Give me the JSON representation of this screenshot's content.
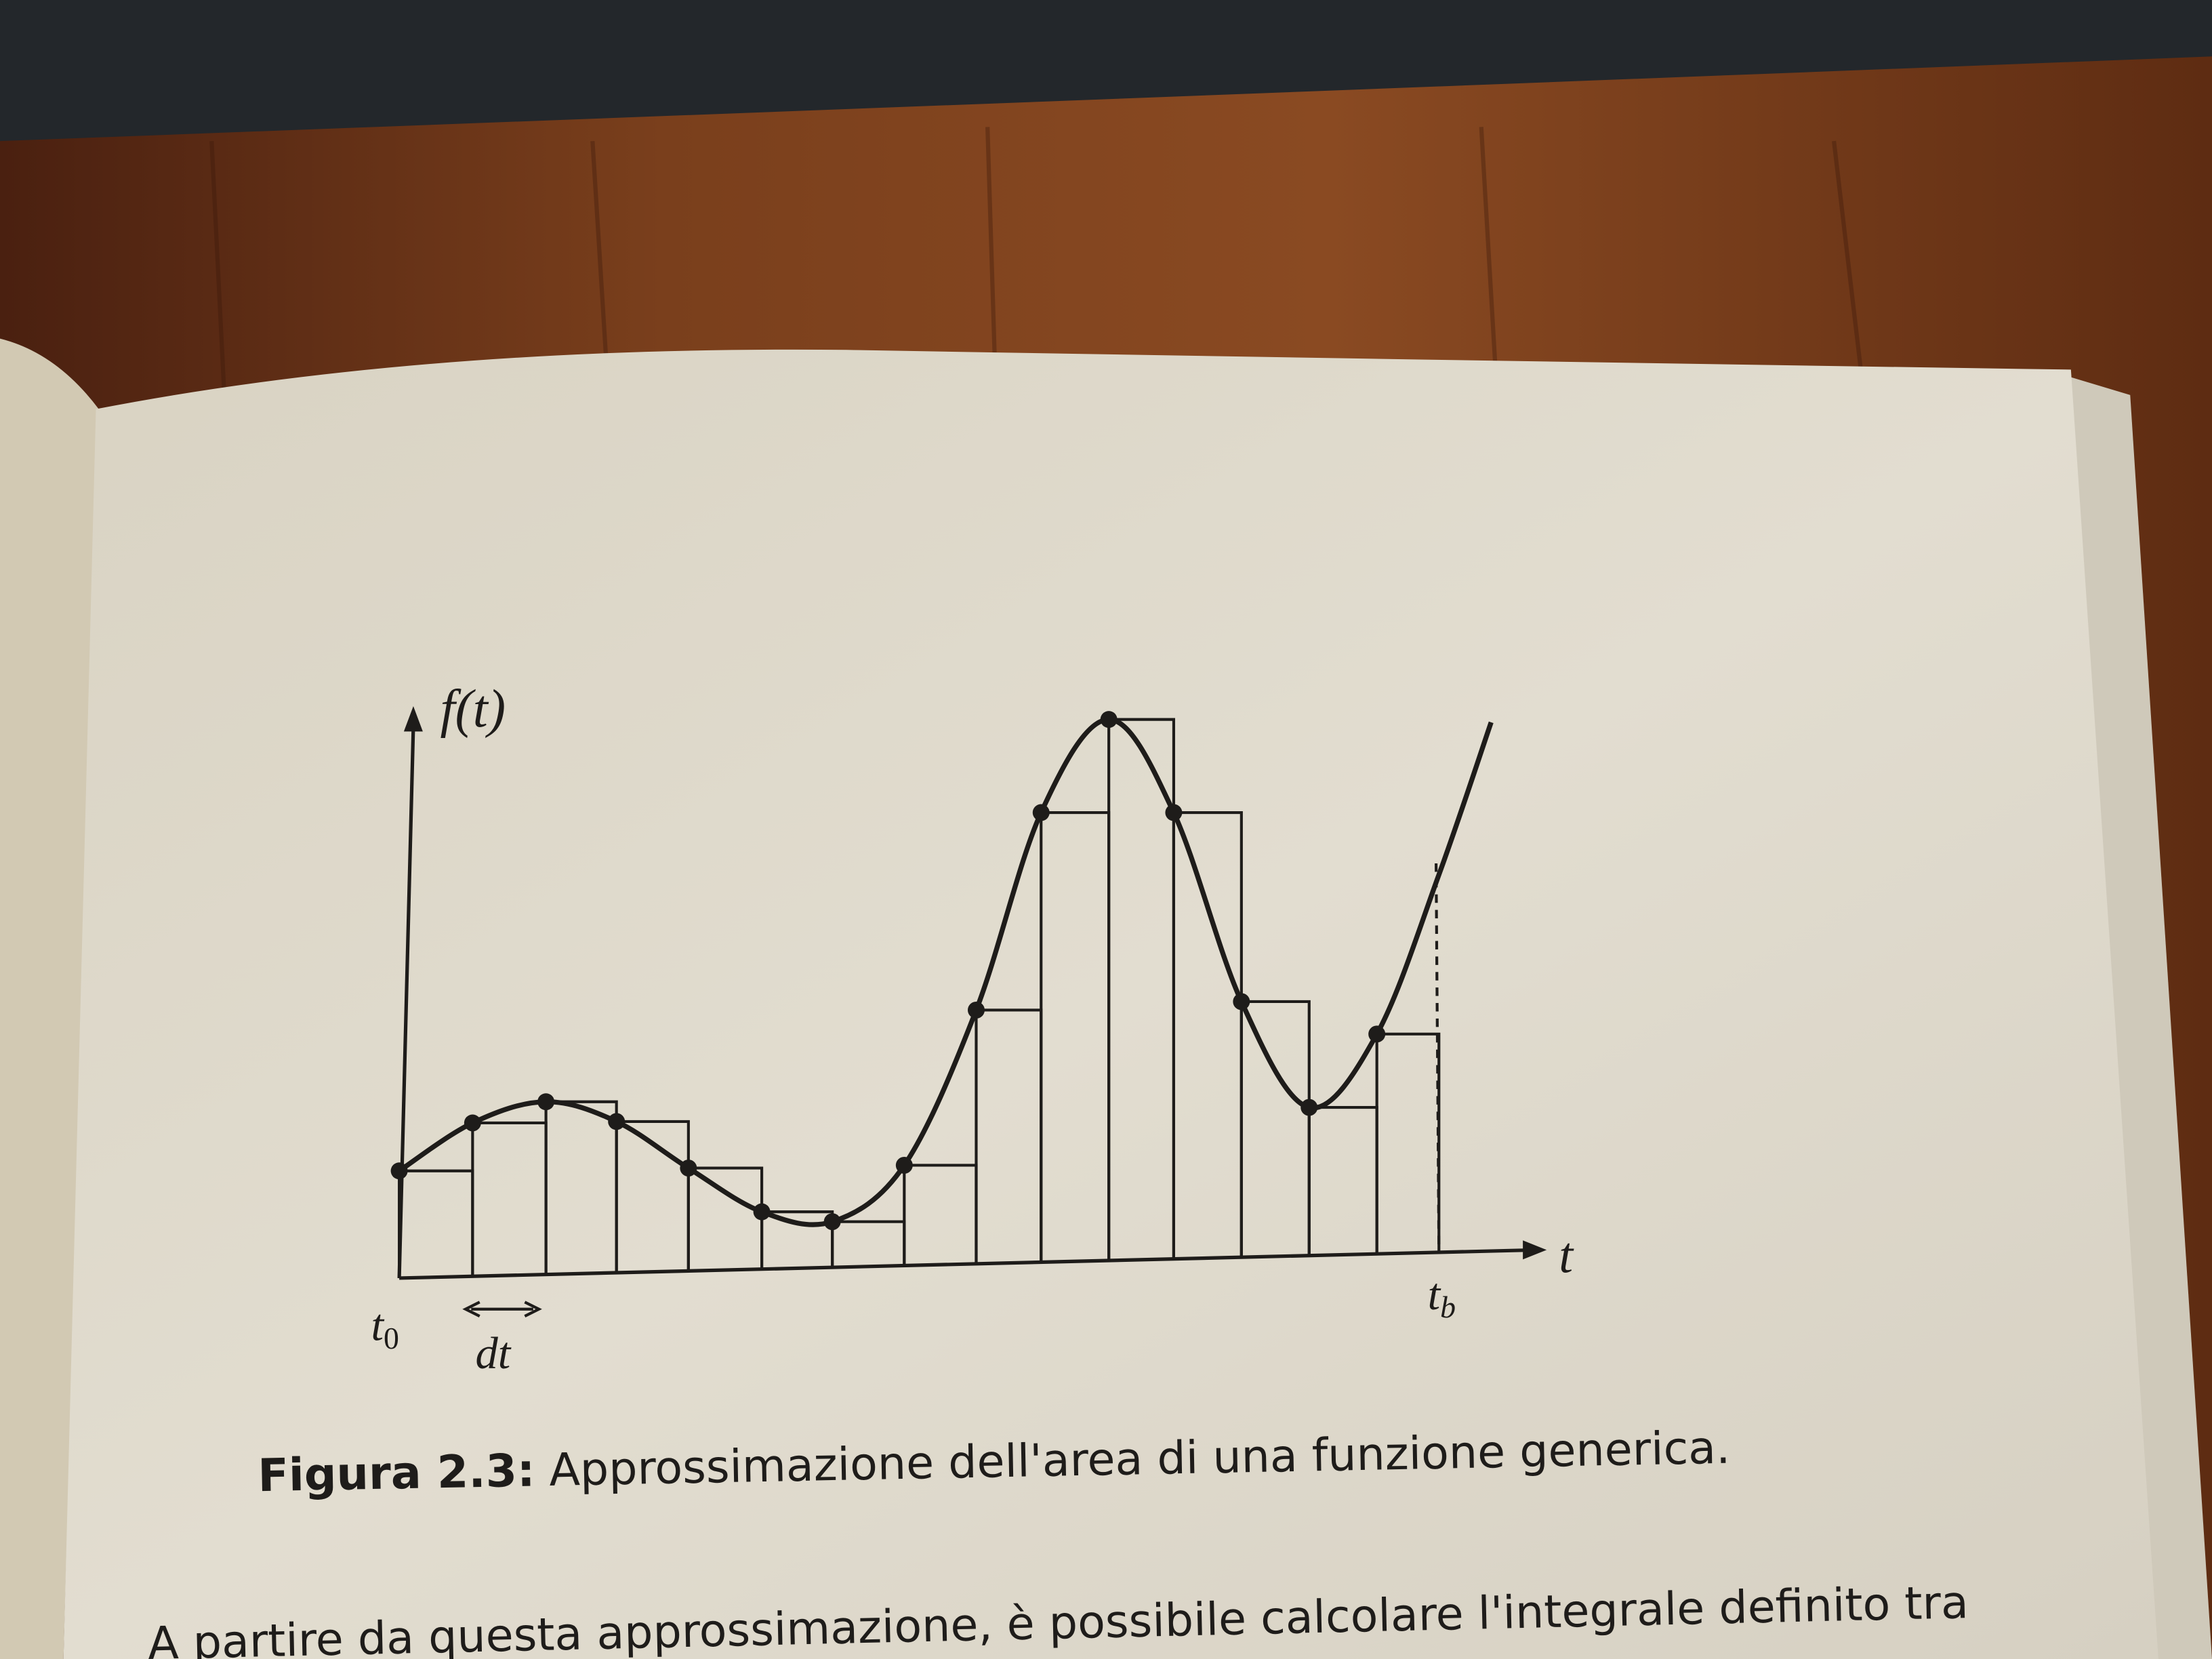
{
  "figure": {
    "y_axis_label": "f(t)",
    "x_axis_label": "t",
    "start_label": {
      "base": "t",
      "sub": "0"
    },
    "end_label": {
      "base": "t",
      "sub": "b"
    },
    "step_label": "dt"
  },
  "caption": {
    "label": "Figura 2.3:",
    "text": "Approssimazione dell'area di una funzione generica."
  },
  "body": {
    "line": "A partire da questa approssimazione, è possibile calcolare l'integrale definito tra"
  }
}
